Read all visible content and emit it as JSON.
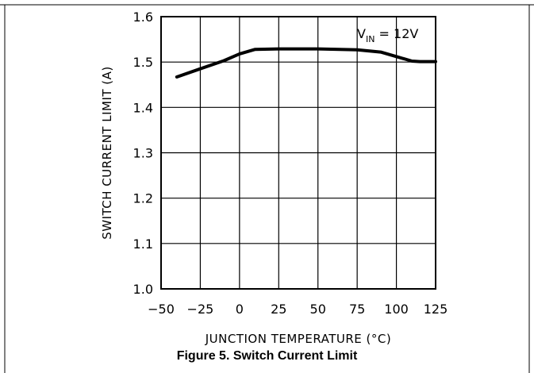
{
  "caption": "Figure 5. Switch Current Limit",
  "chart_data": {
    "type": "line",
    "xlabel": "JUNCTION TEMPERATURE (°C)",
    "ylabel": "SWITCH CURRENT LIMIT (A)",
    "xlim": [
      -50,
      125
    ],
    "ylim": [
      1.0,
      1.6
    ],
    "x_ticks": [
      -50,
      -25,
      0,
      25,
      50,
      75,
      100,
      125
    ],
    "x_tick_labels": [
      "−50",
      "−25",
      "0",
      "25",
      "50",
      "75",
      "100",
      "125"
    ],
    "y_ticks": [
      1.0,
      1.1,
      1.2,
      1.3,
      1.4,
      1.5,
      1.6
    ],
    "y_tick_labels": [
      "1.0",
      "1.1",
      "1.2",
      "1.3",
      "1.4",
      "1.5",
      "1.6"
    ],
    "grid": true,
    "annotation": {
      "main": "V",
      "sub": "IN",
      "rest": " = 12V"
    },
    "series": [
      {
        "x": [
          -40,
          -25,
          -10,
          0,
          10,
          25,
          50,
          75,
          90,
          100,
          110,
          115,
          125
        ],
        "y": [
          1.467,
          1.485,
          1.503,
          1.518,
          1.528,
          1.529,
          1.529,
          1.527,
          1.522,
          1.512,
          1.502,
          1.501,
          1.501
        ]
      }
    ]
  }
}
